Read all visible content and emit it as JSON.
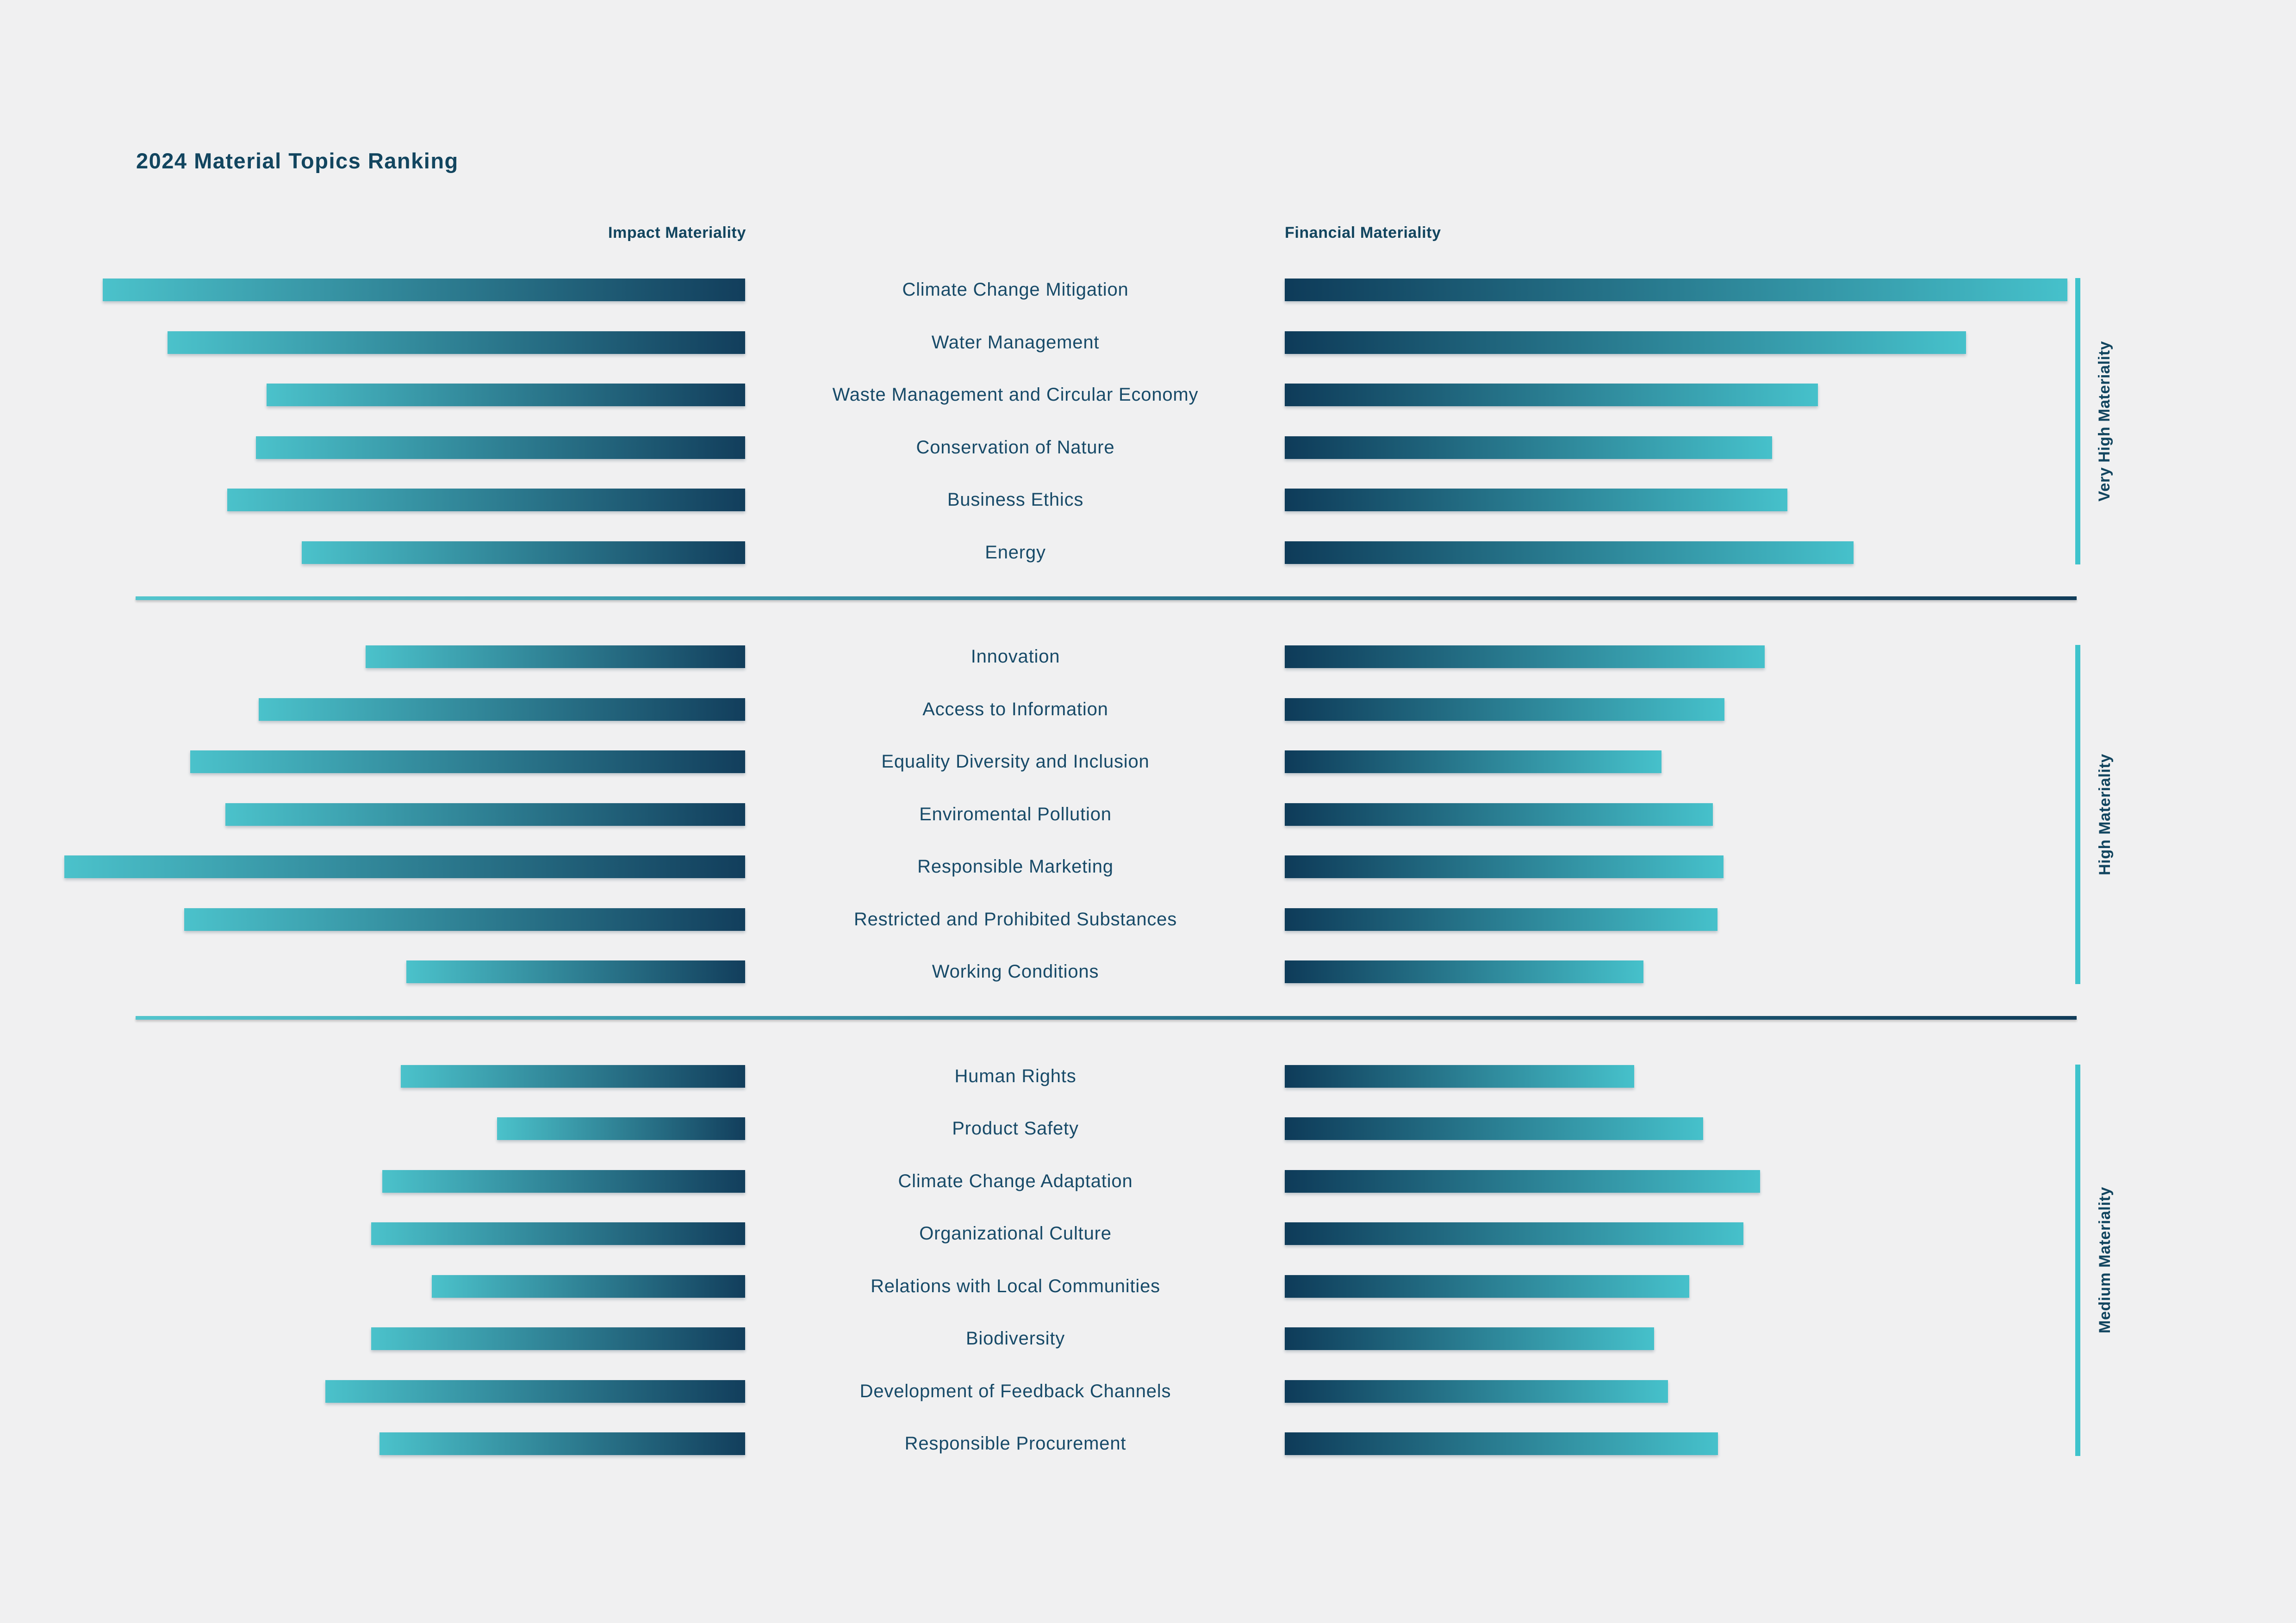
{
  "title": "2024 Material Topics Ranking",
  "columns": {
    "impact": "Impact Materiality",
    "financial": "Financial Materiality"
  },
  "colors": {
    "background": "#f0f0f1",
    "navy_dark": "#123e5c",
    "teal_light": "#4bc2cb",
    "heading_text": "#12455f",
    "topic_text": "#174a68",
    "indicator_line": "#3ec3cc"
  },
  "chart_data": {
    "type": "bar",
    "orientation": "horizontal mirrored columns: impact bars grow leftward (right-aligned), financial bars grow rightward (left-aligned)",
    "units": "approximate bar lengths in px on a 4961px-wide canvas (chart shows no numeric axis)",
    "title": "2024 Material Topics Ranking",
    "xlabel_left": "Impact Materiality",
    "xlabel_right": "Financial Materiality",
    "grid": false,
    "groups": [
      {
        "label": "Very High Materiality",
        "topics": [
          {
            "name": "Climate Change Mitigation",
            "impact": 1388,
            "financial": 1691
          },
          {
            "name": "Water Management",
            "impact": 1248,
            "financial": 1472
          },
          {
            "name": "Waste Management and Circular Economy",
            "impact": 1034,
            "financial": 1152
          },
          {
            "name": "Conservation of Nature",
            "impact": 1057,
            "financial": 1053
          },
          {
            "name": "Business Ethics",
            "impact": 1119,
            "financial": 1086
          },
          {
            "name": "Energy",
            "impact": 958,
            "financial": 1229
          }
        ]
      },
      {
        "label": "High Materiality",
        "topics": [
          {
            "name": "Innovation",
            "impact": 820,
            "financial": 1037
          },
          {
            "name": "Access to Information",
            "impact": 1051,
            "financial": 950
          },
          {
            "name": "Equality Diversity and Inclusion",
            "impact": 1199,
            "financial": 814
          },
          {
            "name": "Enviromental Pollution",
            "impact": 1123,
            "financial": 925
          },
          {
            "name": "Responsible Marketing",
            "impact": 1471,
            "financial": 948
          },
          {
            "name": "Restricted and Prohibited Substances",
            "impact": 1212,
            "financial": 935
          },
          {
            "name": "Working Conditions",
            "impact": 732,
            "financial": 775
          }
        ]
      },
      {
        "label": "Medium Materiality",
        "topics": [
          {
            "name": "Human Rights",
            "impact": 744,
            "financial": 755
          },
          {
            "name": "Product Safety",
            "impact": 536,
            "financial": 904
          },
          {
            "name": "Climate Change Adaptation",
            "impact": 784,
            "financial": 1027
          },
          {
            "name": "Organizational Culture",
            "impact": 808,
            "financial": 991
          },
          {
            "name": "Relations with Local Communities",
            "impact": 677,
            "financial": 874
          },
          {
            "name": "Biodiversity",
            "impact": 808,
            "financial": 798
          },
          {
            "name": "Development of Feedback Channels",
            "impact": 907,
            "financial": 828
          },
          {
            "name": "Responsible Procurement",
            "impact": 790,
            "financial": 936
          }
        ]
      }
    ]
  }
}
